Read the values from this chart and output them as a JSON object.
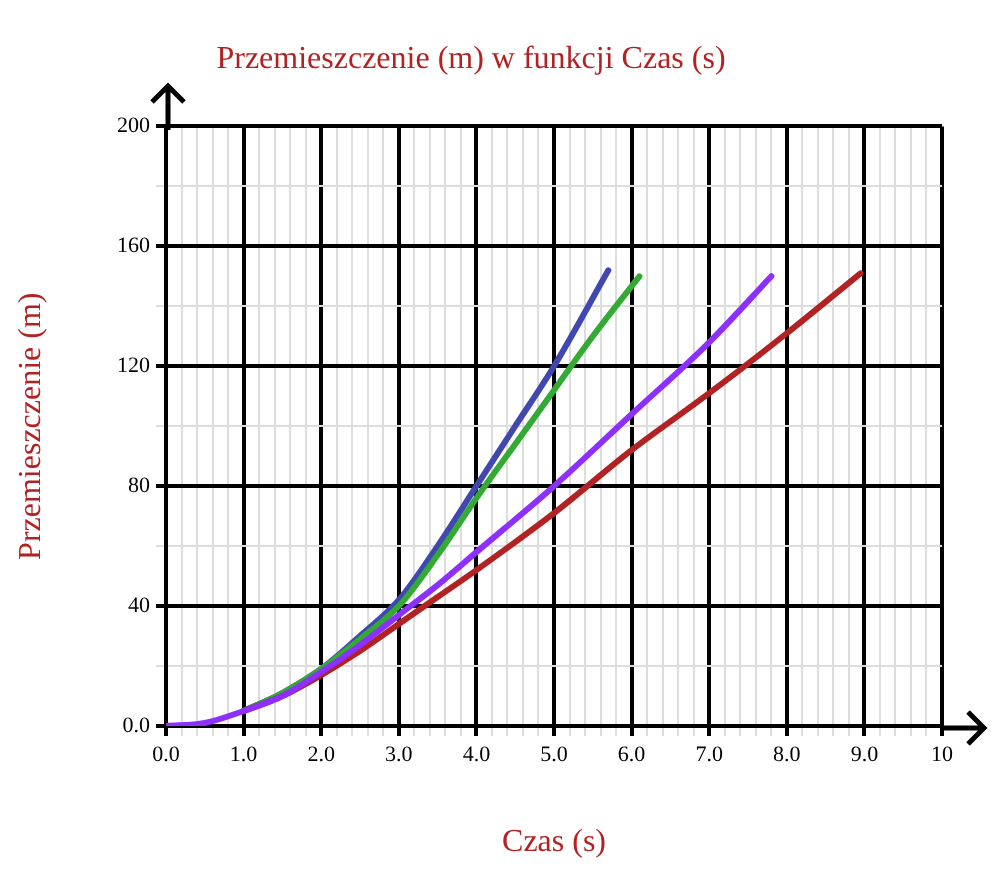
{
  "chart_data": {
    "type": "line",
    "title": "Przemieszczenie (m) w funkcji Czas (s)",
    "xlabel": "Czas (s)",
    "ylabel": "Przemieszczenie (m)",
    "xlim": [
      0,
      10
    ],
    "ylim": [
      0,
      200
    ],
    "xticks": [
      {
        "value": 0,
        "label": "0.0"
      },
      {
        "value": 0.2,
        "label": null
      },
      {
        "value": 0.4,
        "label": null
      },
      {
        "value": 0.6,
        "label": null
      },
      {
        "value": 0.8,
        "label": null
      },
      {
        "value": 1,
        "label": "1.0"
      },
      {
        "value": 1.2,
        "label": null
      },
      {
        "value": 1.4,
        "label": null
      },
      {
        "value": 1.6,
        "label": null
      },
      {
        "value": 1.8,
        "label": null
      },
      {
        "value": 2,
        "label": "2.0"
      },
      {
        "value": 2.2,
        "label": null
      },
      {
        "value": 2.4,
        "label": null
      },
      {
        "value": 2.6,
        "label": null
      },
      {
        "value": 2.8,
        "label": null
      },
      {
        "value": 3,
        "label": "3.0"
      },
      {
        "value": 3.2,
        "label": null
      },
      {
        "value": 3.4,
        "label": null
      },
      {
        "value": 3.6,
        "label": null
      },
      {
        "value": 3.8,
        "label": null
      },
      {
        "value": 4,
        "label": "4.0"
      },
      {
        "value": 4.2,
        "label": null
      },
      {
        "value": 4.4,
        "label": null
      },
      {
        "value": 4.6,
        "label": null
      },
      {
        "value": 4.8,
        "label": null
      },
      {
        "value": 5,
        "label": "5.0"
      },
      {
        "value": 5.2,
        "label": null
      },
      {
        "value": 5.4,
        "label": null
      },
      {
        "value": 5.6,
        "label": null
      },
      {
        "value": 5.8,
        "label": null
      },
      {
        "value": 6,
        "label": "6.0"
      },
      {
        "value": 6.2,
        "label": null
      },
      {
        "value": 6.4,
        "label": null
      },
      {
        "value": 6.6,
        "label": null
      },
      {
        "value": 6.8,
        "label": null
      },
      {
        "value": 7,
        "label": "7.0"
      },
      {
        "value": 7.2,
        "label": null
      },
      {
        "value": 7.4,
        "label": null
      },
      {
        "value": 7.6,
        "label": null
      },
      {
        "value": 7.8,
        "label": null
      },
      {
        "value": 8,
        "label": "8.0"
      },
      {
        "value": 8.2,
        "label": null
      },
      {
        "value": 8.4,
        "label": null
      },
      {
        "value": 8.6,
        "label": null
      },
      {
        "value": 8.8,
        "label": null
      },
      {
        "value": 9,
        "label": "9.0"
      },
      {
        "value": 9.2,
        "label": null
      },
      {
        "value": 9.4,
        "label": null
      },
      {
        "value": 9.6,
        "label": null
      },
      {
        "value": 9.8,
        "label": null
      },
      {
        "value": 10,
        "label": "10"
      }
    ],
    "yticks": [
      {
        "value": 0,
        "label": "0.0"
      },
      {
        "value": 20,
        "label": null
      },
      40,
      {
        "value": 60,
        "label": null
      },
      80,
      {
        "value": 100,
        "label": null
      },
      120,
      {
        "value": 140,
        "label": null
      },
      160,
      {
        "value": 180,
        "label": null
      },
      200
    ],
    "grid": true,
    "legend": false,
    "marker": "none",
    "line_style": "solid",
    "series": [
      {
        "color": "#4048b0",
        "x": [
          1,
          1.5,
          2,
          2.5,
          3,
          3.5,
          4,
          4.5,
          5,
          5.7
        ],
        "values": [
          5,
          11,
          19,
          30,
          42,
          60,
          80,
          100,
          120,
          152
        ]
      },
      {
        "color": "#33aa33",
        "x": [
          1,
          1.5,
          2,
          2.5,
          3,
          3.5,
          4,
          4.5,
          5,
          5.5,
          6.1
        ],
        "values": [
          5,
          11,
          19,
          29,
          40,
          57,
          76,
          94,
          112,
          130,
          150
        ]
      },
      {
        "color": "#b22222",
        "x": [
          1,
          1.5,
          2,
          2.5,
          3,
          3.5,
          4,
          5,
          6,
          7,
          8,
          8.95
        ],
        "values": [
          5,
          10,
          17,
          25,
          34,
          43,
          52,
          71,
          92,
          111,
          131,
          151
        ]
      },
      {
        "color": "#8c2fff",
        "x": [
          0,
          0.5,
          1,
          1.5,
          2,
          2.5,
          3,
          3.5,
          4,
          5,
          6,
          7,
          7.8
        ],
        "values": [
          0,
          1,
          5,
          10,
          18,
          27,
          37,
          47,
          58,
          80,
          104,
          128,
          150
        ]
      }
    ]
  }
}
